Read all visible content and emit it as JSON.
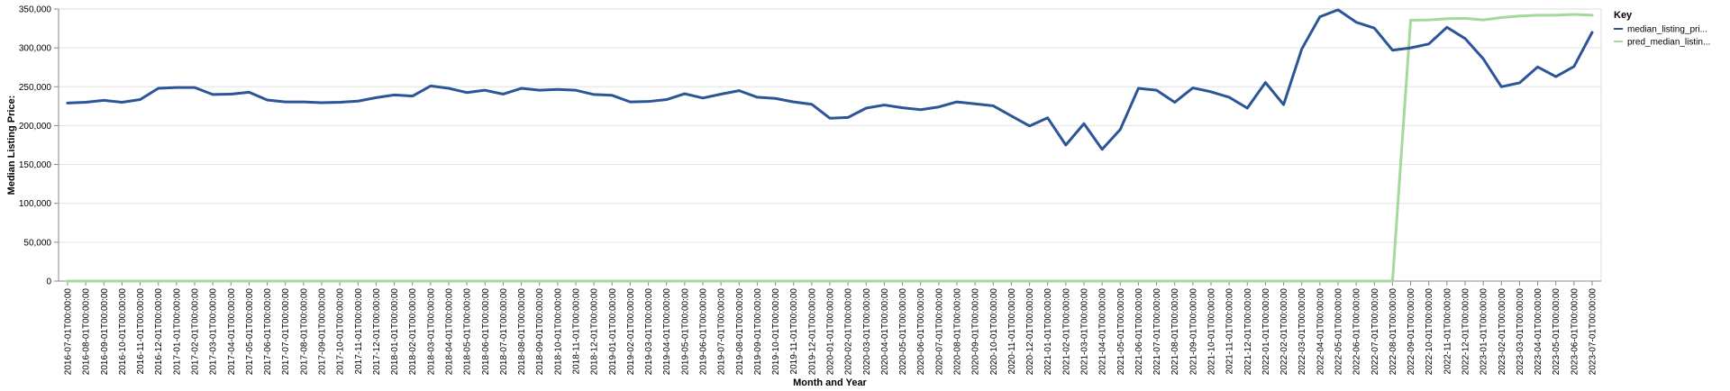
{
  "chart_data": {
    "type": "line",
    "title": "",
    "xlabel": "Month and Year",
    "ylabel": "Median Listing Price:",
    "ylim": [
      0,
      350000
    ],
    "yticks": [
      0,
      50000,
      100000,
      150000,
      200000,
      250000,
      300000,
      350000
    ],
    "ytick_labels": [
      "0",
      "50,000",
      "100,000",
      "150,000",
      "200,000",
      "250,000",
      "300,000",
      "350,000"
    ],
    "grid": true,
    "legend": {
      "title": "Key",
      "position": "right"
    },
    "x": [
      "2016-07-01T00:00:00",
      "2016-08-01T00:00:00",
      "2016-09-01T00:00:00",
      "2016-10-01T00:00:00",
      "2016-11-01T00:00:00",
      "2016-12-01T00:00:00",
      "2017-01-01T00:00:00",
      "2017-02-01T00:00:00",
      "2017-03-01T00:00:00",
      "2017-04-01T00:00:00",
      "2017-05-01T00:00:00",
      "2017-06-01T00:00:00",
      "2017-07-01T00:00:00",
      "2017-08-01T00:00:00",
      "2017-09-01T00:00:00",
      "2017-10-01T00:00:00",
      "2017-11-01T00:00:00",
      "2017-12-01T00:00:00",
      "2018-01-01T00:00:00",
      "2018-02-01T00:00:00",
      "2018-03-01T00:00:00",
      "2018-04-01T00:00:00",
      "2018-05-01T00:00:00",
      "2018-06-01T00:00:00",
      "2018-07-01T00:00:00",
      "2018-08-01T00:00:00",
      "2018-09-01T00:00:00",
      "2018-10-01T00:00:00",
      "2018-11-01T00:00:00",
      "2018-12-01T00:00:00",
      "2019-01-01T00:00:00",
      "2019-02-01T00:00:00",
      "2019-03-01T00:00:00",
      "2019-04-01T00:00:00",
      "2019-05-01T00:00:00",
      "2019-06-01T00:00:00",
      "2019-07-01T00:00:00",
      "2019-08-01T00:00:00",
      "2019-09-01T00:00:00",
      "2019-10-01T00:00:00",
      "2019-11-01T00:00:00",
      "2019-12-01T00:00:00",
      "2020-01-01T00:00:00",
      "2020-02-01T00:00:00",
      "2020-03-01T00:00:00",
      "2020-04-01T00:00:00",
      "2020-05-01T00:00:00",
      "2020-06-01T00:00:00",
      "2020-07-01T00:00:00",
      "2020-08-01T00:00:00",
      "2020-09-01T00:00:00",
      "2020-10-01T00:00:00",
      "2020-11-01T00:00:00",
      "2020-12-01T00:00:00",
      "2021-01-01T00:00:00",
      "2021-02-01T00:00:00",
      "2021-03-01T00:00:00",
      "2021-04-01T00:00:00",
      "2021-05-01T00:00:00",
      "2021-06-01T00:00:00",
      "2021-07-01T00:00:00",
      "2021-08-01T00:00:00",
      "2021-09-01T00:00:00",
      "2021-10-01T00:00:00",
      "2021-11-01T00:00:00",
      "2021-12-01T00:00:00",
      "2022-01-01T00:00:00",
      "2022-02-01T00:00:00",
      "2022-03-01T00:00:00",
      "2022-04-01T00:00:00",
      "2022-05-01T00:00:00",
      "2022-06-01T00:00:00",
      "2022-07-01T00:00:00",
      "2022-08-01T00:00:00",
      "2022-09-01T00:00:00",
      "2022-10-01T00:00:00",
      "2022-11-01T00:00:00",
      "2022-12-01T00:00:00",
      "2023-01-01T00:00:00",
      "2023-02-01T00:00:00",
      "2023-03-01T00:00:00",
      "2023-04-01T00:00:00",
      "2023-05-01T00:00:00",
      "2023-06-01T00:00:00",
      "2023-07-01T00:00:00"
    ],
    "series": [
      {
        "name": "median_listing_pri...",
        "color": "#2c5597",
        "values": [
          229000,
          230000,
          232500,
          230000,
          233500,
          248000,
          249000,
          249000,
          240000,
          240500,
          243000,
          233000,
          230500,
          230500,
          229500,
          230000,
          231500,
          236000,
          239500,
          238000,
          251000,
          248000,
          242500,
          245500,
          240500,
          248000,
          245500,
          246500,
          245500,
          240000,
          239000,
          230500,
          231000,
          233500,
          241000,
          235500,
          240500,
          245000,
          236500,
          235000,
          230500,
          227500,
          209500,
          210500,
          222500,
          226500,
          223000,
          220500,
          224000,
          230500,
          228000,
          225500,
          212500,
          199500,
          210000,
          175000,
          202500,
          169500,
          195000,
          248000,
          245500,
          230000,
          248500,
          243500,
          236500,
          222500,
          255500,
          227000,
          298500,
          340000,
          349000,
          333000,
          325500,
          297000,
          300000,
          305000,
          326500,
          312000,
          286000,
          250000,
          255000,
          275500,
          263000,
          276000,
          320000
        ]
      },
      {
        "name": "pred_median_listin...",
        "color": "#a3d99b",
        "values": [
          0,
          0,
          0,
          0,
          0,
          0,
          0,
          0,
          0,
          0,
          0,
          0,
          0,
          0,
          0,
          0,
          0,
          0,
          0,
          0,
          0,
          0,
          0,
          0,
          0,
          0,
          0,
          0,
          0,
          0,
          0,
          0,
          0,
          0,
          0,
          0,
          0,
          0,
          0,
          0,
          0,
          0,
          0,
          0,
          0,
          0,
          0,
          0,
          0,
          0,
          0,
          0,
          0,
          0,
          0,
          0,
          0,
          0,
          0,
          0,
          0,
          0,
          0,
          0,
          0,
          0,
          0,
          0,
          0,
          0,
          0,
          0,
          0,
          0,
          335500,
          336000,
          337500,
          338000,
          336000,
          339000,
          341000,
          342000,
          342000,
          343000,
          342000
        ]
      }
    ]
  }
}
